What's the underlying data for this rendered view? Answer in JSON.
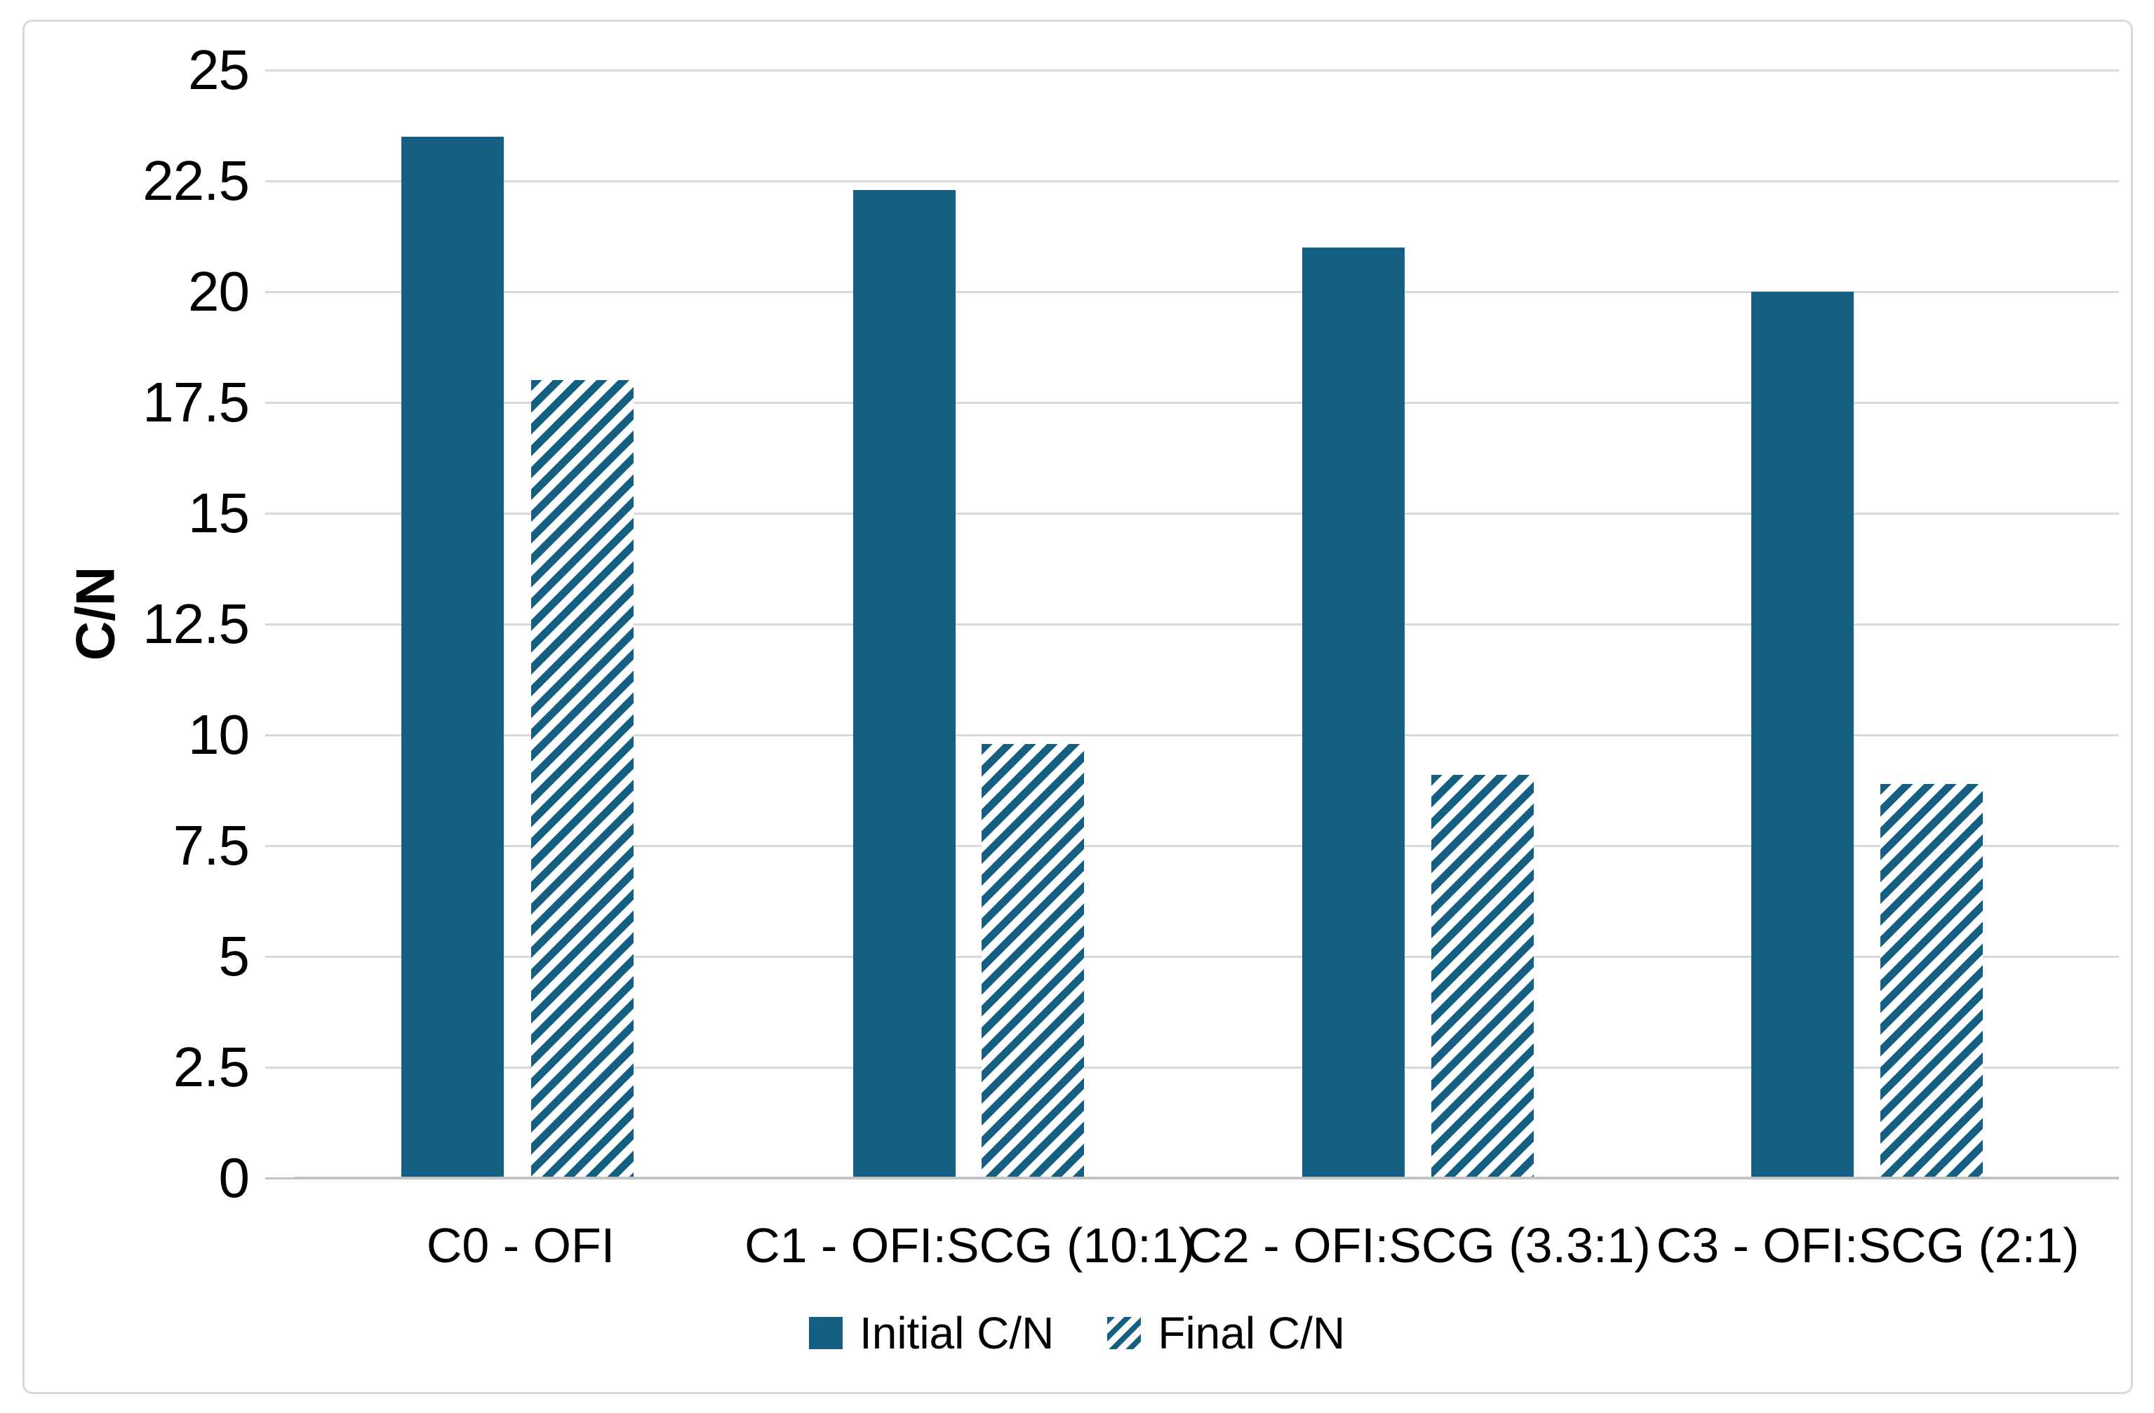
{
  "chart_data": {
    "type": "bar",
    "title": "",
    "xlabel": "",
    "ylabel": "C/N",
    "categories": [
      "C0 - OFI",
      "C1 - OFI:SCG (10:1)",
      "C2 - OFI:SCG (3.3:1)",
      "C3 - OFI:SCG (2:1)"
    ],
    "series": [
      {
        "name": "Initial C/N",
        "style": "solid",
        "values": [
          23.5,
          22.3,
          21.0,
          20.0
        ]
      },
      {
        "name": "Final C/N",
        "style": "diagonal-hatch",
        "values": [
          18.0,
          9.8,
          9.1,
          8.9
        ]
      }
    ],
    "ylim": [
      0,
      25
    ],
    "ytick_labels": [
      "0",
      "2.5",
      "5",
      "7.5",
      "10",
      "12.5",
      "15",
      "17.5",
      "20",
      "22.5",
      "25"
    ],
    "grid": true,
    "legend_position": "bottom-center",
    "colors": {
      "accent": "#156082",
      "hatch_background": "#ffffff",
      "gridline": "#d9d9d9",
      "axis_line": "#c3c3c3",
      "text": "#000000",
      "figure_border": "#d9d9d9"
    }
  }
}
